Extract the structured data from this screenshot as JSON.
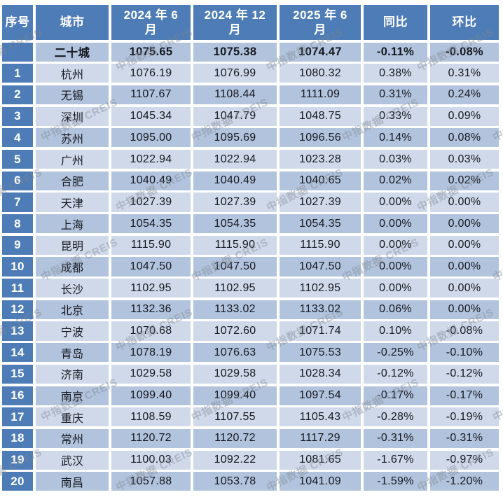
{
  "watermark": {
    "text": "中指数据 CREIS"
  },
  "colors": {
    "header_bg": "#4e7cb6",
    "index_bg": "#4e7cb6",
    "row_light": "#cfd9ea",
    "row_dark": "#b2c3dd",
    "page_bg": "#ffffff",
    "header_text": "#ffffff",
    "text_dark": "#15181f",
    "watermark": "#7d8690"
  },
  "table": {
    "header_display": [
      "序号",
      "城市",
      "2024 年 6\n月",
      "2024 年 12\n月",
      "2025 年 6\n月",
      "同比",
      "环比"
    ]
  },
  "chart_data": {
    "type": "table",
    "columns": [
      "序号",
      "城市",
      "2024 年 6 月",
      "2024 年 12 月",
      "2025 年 6 月",
      "同比",
      "环比"
    ],
    "rows": [
      [
        "",
        "二十城",
        "1075.65",
        "1075.38",
        "1074.47",
        "-0.11%",
        "-0.08%"
      ],
      [
        "1",
        "杭州",
        "1076.19",
        "1076.99",
        "1080.32",
        "0.38%",
        "0.31%"
      ],
      [
        "2",
        "无锡",
        "1107.67",
        "1108.44",
        "1111.09",
        "0.31%",
        "0.24%"
      ],
      [
        "3",
        "深圳",
        "1045.34",
        "1047.79",
        "1048.75",
        "0.33%",
        "0.09%"
      ],
      [
        "4",
        "苏州",
        "1095.00",
        "1095.69",
        "1096.56",
        "0.14%",
        "0.08%"
      ],
      [
        "5",
        "广州",
        "1022.94",
        "1022.94",
        "1023.28",
        "0.03%",
        "0.03%"
      ],
      [
        "6",
        "合肥",
        "1040.49",
        "1040.49",
        "1040.65",
        "0.02%",
        "0.02%"
      ],
      [
        "7",
        "天津",
        "1027.39",
        "1027.39",
        "1027.39",
        "0.00%",
        "0.00%"
      ],
      [
        "8",
        "上海",
        "1054.35",
        "1054.35",
        "1054.35",
        "0.00%",
        "0.00%"
      ],
      [
        "9",
        "昆明",
        "1115.90",
        "1115.90",
        "1115.90",
        "0.00%",
        "0.00%"
      ],
      [
        "10",
        "成都",
        "1047.50",
        "1047.50",
        "1047.50",
        "0.00%",
        "0.00%"
      ],
      [
        "11",
        "长沙",
        "1102.95",
        "1102.95",
        "1102.95",
        "0.00%",
        "0.00%"
      ],
      [
        "12",
        "北京",
        "1132.36",
        "1133.02",
        "1133.02",
        "0.06%",
        "0.00%"
      ],
      [
        "13",
        "宁波",
        "1070.68",
        "1072.60",
        "1071.74",
        "0.10%",
        "-0.08%"
      ],
      [
        "14",
        "青岛",
        "1078.19",
        "1076.63",
        "1075.53",
        "-0.25%",
        "-0.10%"
      ],
      [
        "15",
        "济南",
        "1029.58",
        "1029.58",
        "1028.34",
        "-0.12%",
        "-0.12%"
      ],
      [
        "16",
        "南京",
        "1099.40",
        "1099.40",
        "1097.54",
        "-0.17%",
        "-0.17%"
      ],
      [
        "17",
        "重庆",
        "1108.59",
        "1107.55",
        "1105.43",
        "-0.28%",
        "-0.19%"
      ],
      [
        "18",
        "常州",
        "1120.72",
        "1120.72",
        "1117.29",
        "-0.31%",
        "-0.31%"
      ],
      [
        "19",
        "武汉",
        "1100.03",
        "1092.22",
        "1081.65",
        "-1.67%",
        "-0.97%"
      ],
      [
        "20",
        "南昌",
        "1057.88",
        "1053.78",
        "1041.09",
        "-1.59%",
        "-1.20%"
      ]
    ]
  }
}
